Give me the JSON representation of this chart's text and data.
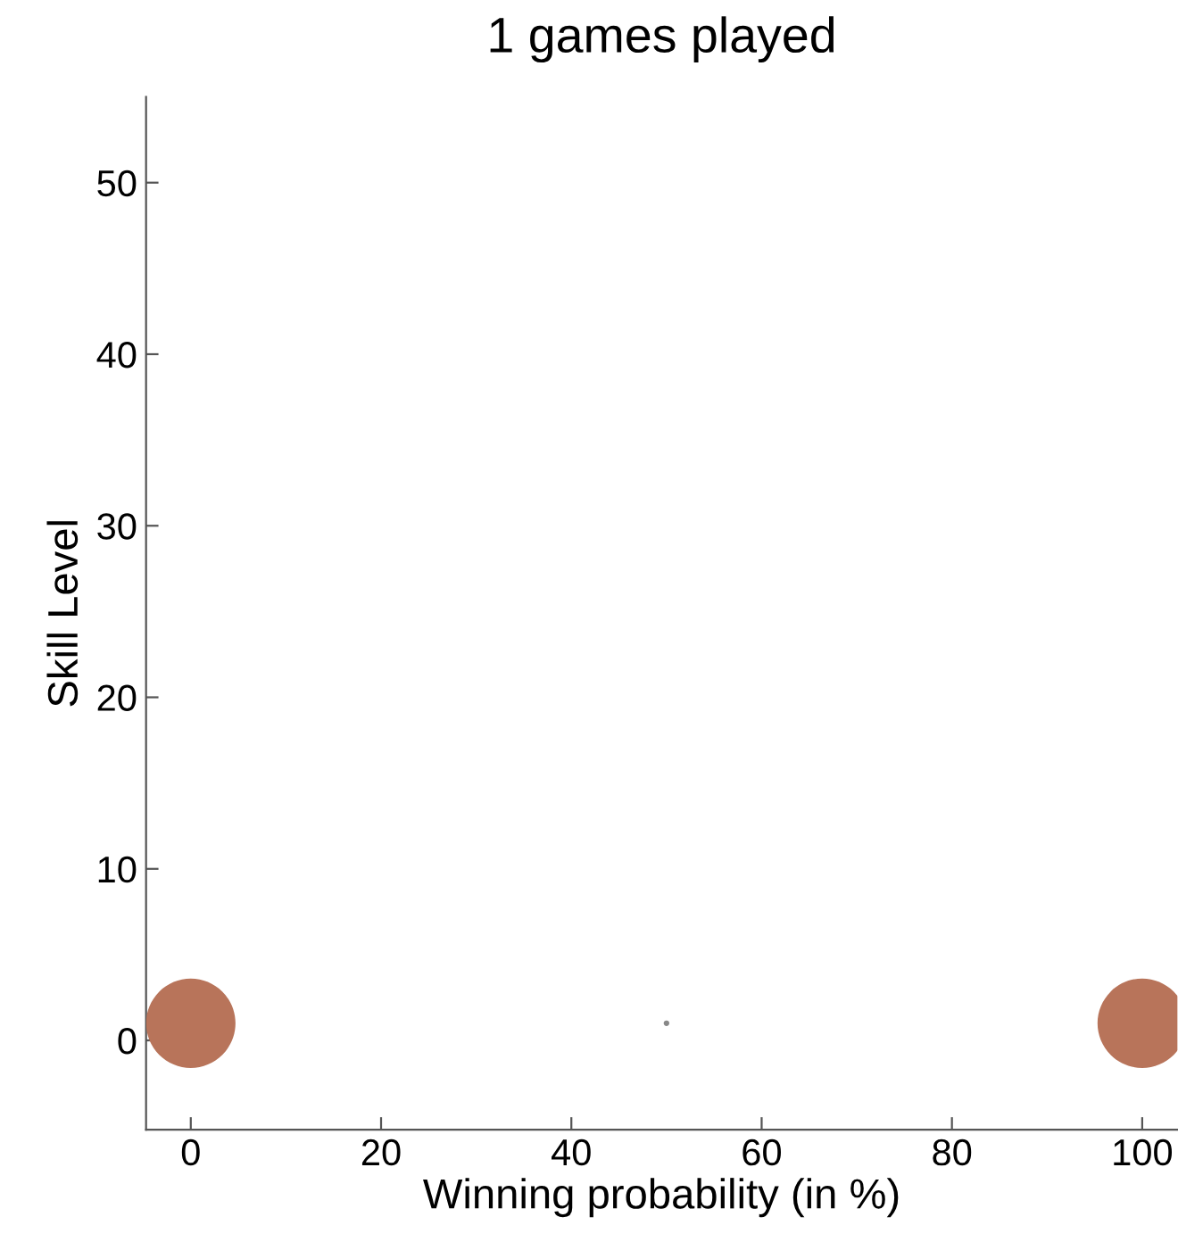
{
  "chart_data": {
    "type": "bubble",
    "title": "1 games played",
    "xlabel": "Winning probability (in %)",
    "ylabel": "Skill Level",
    "x": [
      0,
      50,
      100
    ],
    "values": [
      1,
      1,
      1
    ],
    "sizes": [
      1,
      0.004,
      1
    ],
    "colors": [
      "#b8745a",
      "#888888",
      "#b8745a"
    ],
    "xlim": [
      -4.7,
      103.7
    ],
    "ylim": [
      -5.2,
      55
    ],
    "xticks": [
      0,
      20,
      40,
      60,
      80,
      100
    ],
    "yticks": [
      0,
      10,
      20,
      30,
      40,
      50
    ],
    "grid": false,
    "legend": false
  }
}
